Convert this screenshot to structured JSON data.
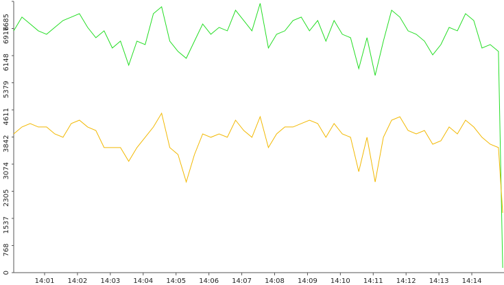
{
  "chart_data": {
    "type": "line",
    "x": [
      0.06,
      0.31,
      0.56,
      0.81,
      1.06,
      1.31,
      1.56,
      1.81,
      2.06,
      2.31,
      2.56,
      2.81,
      3.06,
      3.31,
      3.56,
      3.81,
      4.06,
      4.31,
      4.56,
      4.81,
      5.06,
      5.31,
      5.56,
      5.81,
      6.06,
      6.31,
      6.56,
      6.81,
      7.06,
      7.31,
      7.56,
      7.81,
      8.06,
      8.31,
      8.56,
      8.81,
      9.06,
      9.31,
      9.56,
      9.81,
      10.06,
      10.31,
      10.56,
      10.81,
      11.06,
      11.31,
      11.56,
      11.81,
      12.06,
      12.31,
      12.56,
      12.81,
      13.06,
      13.31,
      13.56,
      13.81,
      14.06,
      14.31,
      14.56,
      14.81,
      14.94
    ],
    "series": [
      {
        "color": "#22dd22",
        "values": [
          6850,
          7239,
          7045,
          6850,
          6753,
          6947,
          7142,
          7239,
          7336,
          6947,
          6655,
          6850,
          6363,
          6558,
          5877,
          6558,
          6461,
          7336,
          7531,
          6558,
          6266,
          6072,
          6558,
          7045,
          6753,
          6947,
          6850,
          7434,
          7142,
          6850,
          7628,
          6363,
          6753,
          6850,
          7142,
          7239,
          6850,
          7142,
          6558,
          7142,
          6753,
          6655,
          5780,
          6655,
          5585,
          6558,
          7434,
          7239,
          6850,
          6753,
          6558,
          6169,
          6461,
          6947,
          6850,
          7336,
          7142,
          6363,
          6461,
          6266,
          136
        ]
      },
      {
        "color": "#f2b800",
        "values": [
          3931,
          4126,
          4223,
          4126,
          4126,
          3931,
          3834,
          4223,
          4320,
          4126,
          4028,
          3542,
          3542,
          3542,
          3153,
          3542,
          3834,
          4126,
          4515,
          3542,
          3347,
          2569,
          3347,
          3931,
          3834,
          3931,
          3834,
          4320,
          4028,
          3834,
          4417,
          3542,
          3931,
          4126,
          4126,
          4223,
          4320,
          4223,
          3834,
          4223,
          3931,
          3834,
          2861,
          3834,
          2569,
          3834,
          4320,
          4417,
          4028,
          3931,
          4028,
          3639,
          3736,
          4126,
          3931,
          4320,
          4126,
          3834,
          3639,
          3542,
          1693
        ]
      }
    ],
    "xlim": [
      0.06,
      14.98
    ],
    "xticks": [
      {
        "value": 1,
        "label": "14:01"
      },
      {
        "value": 2,
        "label": "14:02"
      },
      {
        "value": 3,
        "label": "14:03"
      },
      {
        "value": 4,
        "label": "14:04"
      },
      {
        "value": 5,
        "label": "14:05"
      },
      {
        "value": 6,
        "label": "14:06"
      },
      {
        "value": 7,
        "label": "14:07"
      },
      {
        "value": 8,
        "label": "14:08"
      },
      {
        "value": 9,
        "label": "14:09"
      },
      {
        "value": 10,
        "label": "14:10"
      },
      {
        "value": 11,
        "label": "14:11"
      },
      {
        "value": 12,
        "label": "14:12"
      },
      {
        "value": 13,
        "label": "14:13"
      },
      {
        "value": 14,
        "label": "14:14"
      }
    ],
    "ylim": [
      0,
      7685
    ],
    "yticks": [
      0,
      768,
      1537,
      2305,
      3074,
      3842,
      4611,
      5379,
      6148,
      6916,
      7685
    ]
  }
}
